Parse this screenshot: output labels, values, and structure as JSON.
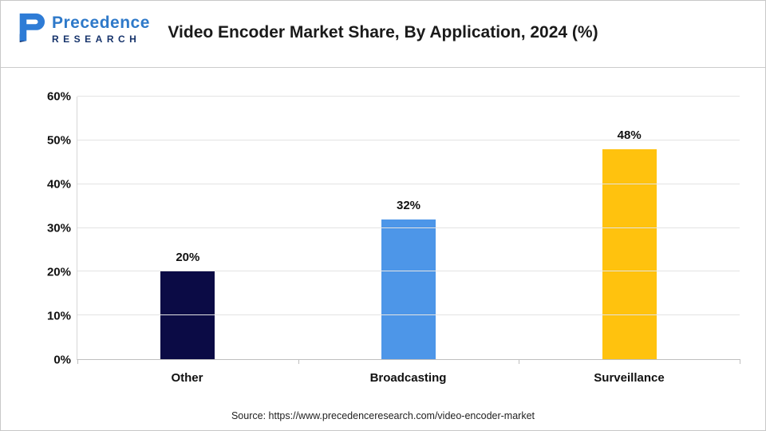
{
  "header": {
    "title": "Video Encoder Market Share, By Application, 2024 (%)",
    "logo": {
      "line1": "Precedence",
      "line2": "RESEARCH"
    }
  },
  "chart_data": {
    "type": "bar",
    "title": "Video Encoder Market Share, By Application, 2024 (%)",
    "categories": [
      "Other",
      "Broadcasting",
      "Surveillance"
    ],
    "values": [
      20,
      32,
      48
    ],
    "value_labels": [
      "20%",
      "32%",
      "48%"
    ],
    "bar_colors": [
      "#0b0b45",
      "#4d96e8",
      "#ffc20e"
    ],
    "xlabel": "",
    "ylabel": "",
    "ylim": [
      0,
      60
    ],
    "yticks": [
      0,
      10,
      20,
      30,
      40,
      50,
      60
    ],
    "ytick_labels": [
      "0%",
      "10%",
      "20%",
      "30%",
      "40%",
      "50%",
      "60%"
    ],
    "grid": "horizontal",
    "legend": "none"
  },
  "footer": {
    "source": "Source: https://www.precedenceresearch.com/video-encoder-market"
  }
}
